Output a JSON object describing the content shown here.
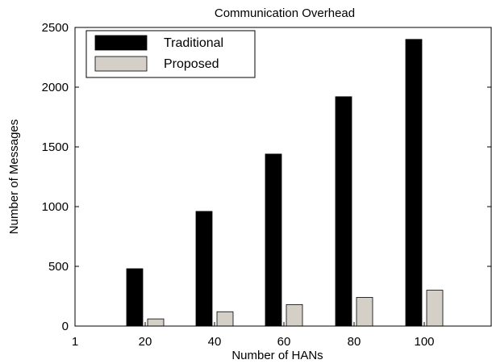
{
  "chart_data": {
    "type": "bar",
    "title": "Communication Overhead",
    "xlabel": "Number of HANs",
    "ylabel": "Number of Messages",
    "categories": [
      "20",
      "40",
      "60",
      "80",
      "100"
    ],
    "x_tick_labels": [
      "1",
      "20",
      "40",
      "60",
      "80",
      "100"
    ],
    "y_ticks": [
      0,
      500,
      1000,
      1500,
      2000,
      2500
    ],
    "ylim": [
      0,
      2500
    ],
    "grid": false,
    "legend_position": "top-left",
    "series": [
      {
        "name": "Traditional",
        "color": "#000000",
        "values": [
          480,
          960,
          1440,
          1920,
          2400
        ]
      },
      {
        "name": "Proposed",
        "color": "#d4d0c8",
        "values": [
          60,
          120,
          180,
          240,
          300
        ]
      }
    ]
  }
}
